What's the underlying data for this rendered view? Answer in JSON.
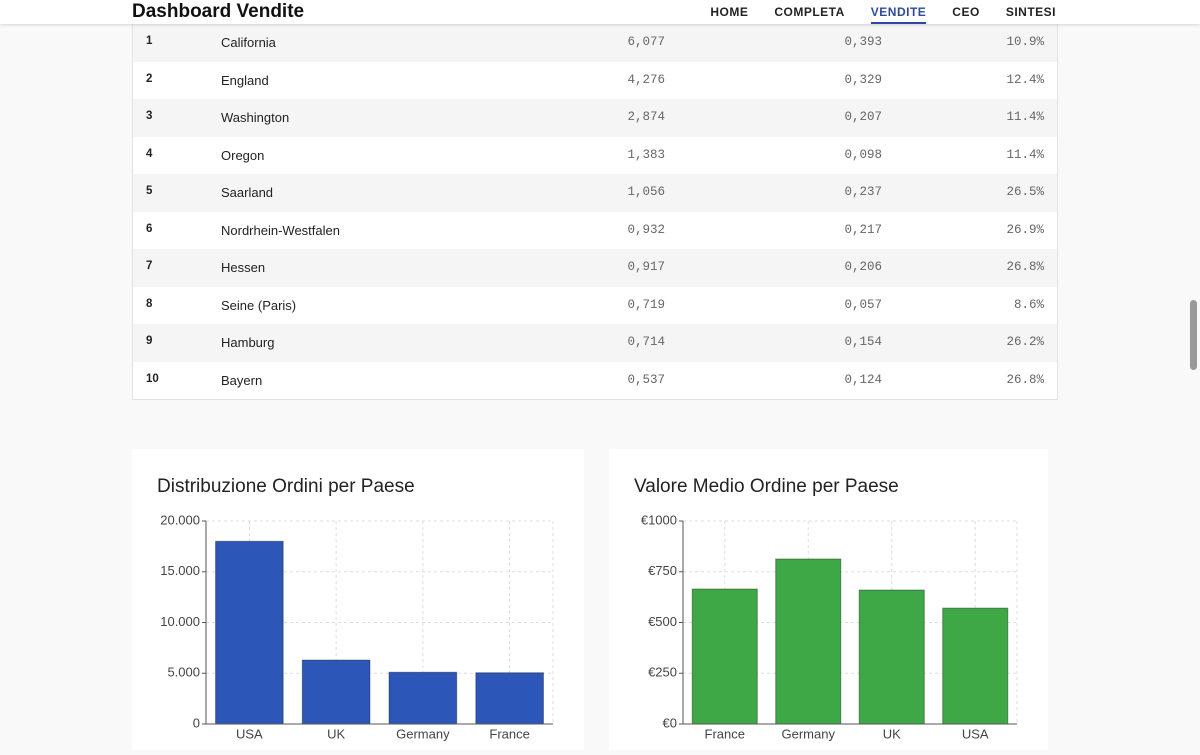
{
  "header": {
    "title": "Dashboard Vendite",
    "nav": [
      "HOME",
      "COMPLETA",
      "VENDITE",
      "CEO",
      "SINTESI"
    ],
    "active": 2
  },
  "table": {
    "rows": [
      [
        "1",
        "California",
        "6,077",
        "0,393",
        "10.9%"
      ],
      [
        "2",
        "England",
        "4,276",
        "0,329",
        "12.4%"
      ],
      [
        "3",
        "Washington",
        "2,874",
        "0,207",
        "11.4%"
      ],
      [
        "4",
        "Oregon",
        "1,383",
        "0,098",
        "11.4%"
      ],
      [
        "5",
        "Saarland",
        "1,056",
        "0,237",
        "26.5%"
      ],
      [
        "6",
        "Nordrhein-Westfalen",
        "0,932",
        "0,217",
        "26.9%"
      ],
      [
        "7",
        "Hessen",
        "0,917",
        "0,206",
        "26.8%"
      ],
      [
        "8",
        "Seine (Paris)",
        "0,719",
        "0,057",
        "8.6%"
      ],
      [
        "9",
        "Hamburg",
        "0,714",
        "0,154",
        "26.2%"
      ],
      [
        "10",
        "Bayern",
        "0,537",
        "0,124",
        "26.8%"
      ]
    ]
  },
  "chart_data": [
    {
      "type": "bar",
      "title": "Distribuzione Ordini per Paese",
      "categories": [
        "USA",
        "UK",
        "Germany",
        "France"
      ],
      "values": [
        18000,
        6300,
        5100,
        5050
      ],
      "color": "#2c56b8",
      "ylim": [
        0,
        20000
      ],
      "yticks": [
        0,
        {
          "value": 5000,
          "label": "5.000"
        },
        {
          "value": 10000,
          "label": "10.000"
        },
        {
          "value": 15000,
          "label": "15.000"
        },
        {
          "value": 20000,
          "label": "20.000"
        }
      ],
      "grid": true
    },
    {
      "type": "bar",
      "title": "Valore Medio Ordine per Paese",
      "categories": [
        "France",
        "Germany",
        "UK",
        "USA"
      ],
      "values": [
        665,
        813,
        660,
        571
      ],
      "color": "#3ea846",
      "ylim": [
        0,
        1000
      ],
      "yticks": [
        {
          "value": 0,
          "label": "€0"
        },
        {
          "value": 250,
          "label": "€250"
        },
        {
          "value": 500,
          "label": "€500"
        },
        {
          "value": 750,
          "label": "€750"
        },
        {
          "value": 1000,
          "label": "€1000"
        }
      ],
      "grid": true
    }
  ]
}
